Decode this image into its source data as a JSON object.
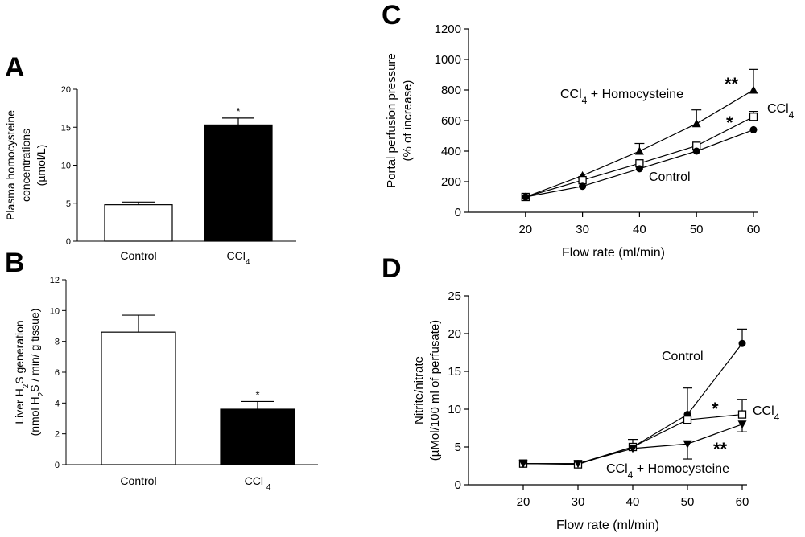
{
  "panels": {
    "A": "A",
    "B": "B",
    "C": "C",
    "D": "D"
  },
  "chart_data": [
    {
      "id": "A",
      "type": "bar",
      "categories": [
        "Control",
        "CCl4"
      ],
      "values": [
        4.8,
        15.3
      ],
      "errors": [
        0.35,
        0.9
      ],
      "bar_colors": [
        "#ffffff",
        "#000000"
      ],
      "significance": [
        "",
        "*"
      ],
      "ylabel_lines": [
        "Plasma homocysteine",
        "concentrations",
        "(µmol/L)"
      ],
      "ylim": [
        0,
        20
      ],
      "yticks": [
        "0",
        "5",
        "10",
        "15",
        "20"
      ]
    },
    {
      "id": "B",
      "type": "bar",
      "categories": [
        "Control",
        "CCl 4"
      ],
      "values": [
        8.6,
        3.6
      ],
      "errors": [
        1.1,
        0.5
      ],
      "bar_colors": [
        "#ffffff",
        "#000000"
      ],
      "significance": [
        "",
        "*"
      ],
      "ylabel_lines": [
        "Liver H2S generation",
        "(nmol H2S / min/ g tissue)"
      ],
      "ylim": [
        0,
        12
      ],
      "yticks": [
        "0",
        "2",
        "4",
        "6",
        "8",
        "10",
        "12"
      ]
    },
    {
      "id": "C",
      "type": "line",
      "x": [
        20,
        30,
        40,
        50,
        60
      ],
      "xlabel": "Flow rate (ml/min)",
      "ylabel_lines": [
        "Portal perfusion pressure",
        "(% of increase)"
      ],
      "xlim": [
        10,
        60
      ],
      "ylim": [
        0,
        1200
      ],
      "xticks": [
        "20",
        "30",
        "40",
        "50",
        "60"
      ],
      "yticks": [
        "0",
        "200",
        "400",
        "600",
        "800",
        "1000",
        "1200"
      ],
      "series": [
        {
          "name": "CCl4 + Homocysteine",
          "marker": "triangle-up",
          "values": [
            100,
            240,
            400,
            580,
            800
          ],
          "errors": [
            0,
            0,
            50,
            90,
            135
          ]
        },
        {
          "name": "CCl4",
          "marker": "square-open",
          "values": [
            100,
            210,
            320,
            435,
            625
          ],
          "errors": [
            0,
            0,
            0,
            0,
            35
          ]
        },
        {
          "name": "Control",
          "marker": "circle",
          "values": [
            100,
            170,
            285,
            400,
            540
          ],
          "errors": [
            0,
            0,
            0,
            0,
            0
          ]
        }
      ],
      "annotations": [
        {
          "text": "CCl4 + Homocysteine"
        },
        {
          "text": "**"
        },
        {
          "text": "CCl4"
        },
        {
          "text": "*"
        },
        {
          "text": "Control"
        }
      ]
    },
    {
      "id": "D",
      "type": "line",
      "x": [
        20,
        30,
        40,
        50,
        60
      ],
      "xlabel": "Flow rate (ml/min)",
      "ylabel_lines": [
        "Nitrite/nitrate",
        "(µMol/100 ml of perfusate)"
      ],
      "xlim": [
        10,
        60
      ],
      "ylim": [
        0,
        25
      ],
      "xticks": [
        "20",
        "30",
        "40",
        "50",
        "60"
      ],
      "yticks": [
        "0",
        "5",
        "10",
        "15",
        "20",
        "25"
      ],
      "series": [
        {
          "name": "Control",
          "marker": "circle",
          "values": [
            2.8,
            2.8,
            5.0,
            9.3,
            18.7
          ],
          "errors": [
            0,
            0,
            1.0,
            3.5,
            1.9
          ]
        },
        {
          "name": "CCl4",
          "marker": "square-open",
          "values": [
            2.8,
            2.7,
            5.0,
            8.6,
            9.3
          ],
          "errors": [
            0,
            0,
            0,
            0,
            2.0
          ]
        },
        {
          "name": "CCl4 + Homocysteine",
          "marker": "triangle-down",
          "values": [
            2.8,
            2.8,
            4.8,
            5.4,
            8.0
          ],
          "errors": [
            0,
            0,
            0,
            2.0,
            1.0
          ]
        }
      ],
      "annotations": [
        {
          "text": "Control"
        },
        {
          "text": "*"
        },
        {
          "text": "CCl4"
        },
        {
          "text": "**"
        },
        {
          "text": "CCl4 + Homocysteine"
        }
      ]
    }
  ]
}
